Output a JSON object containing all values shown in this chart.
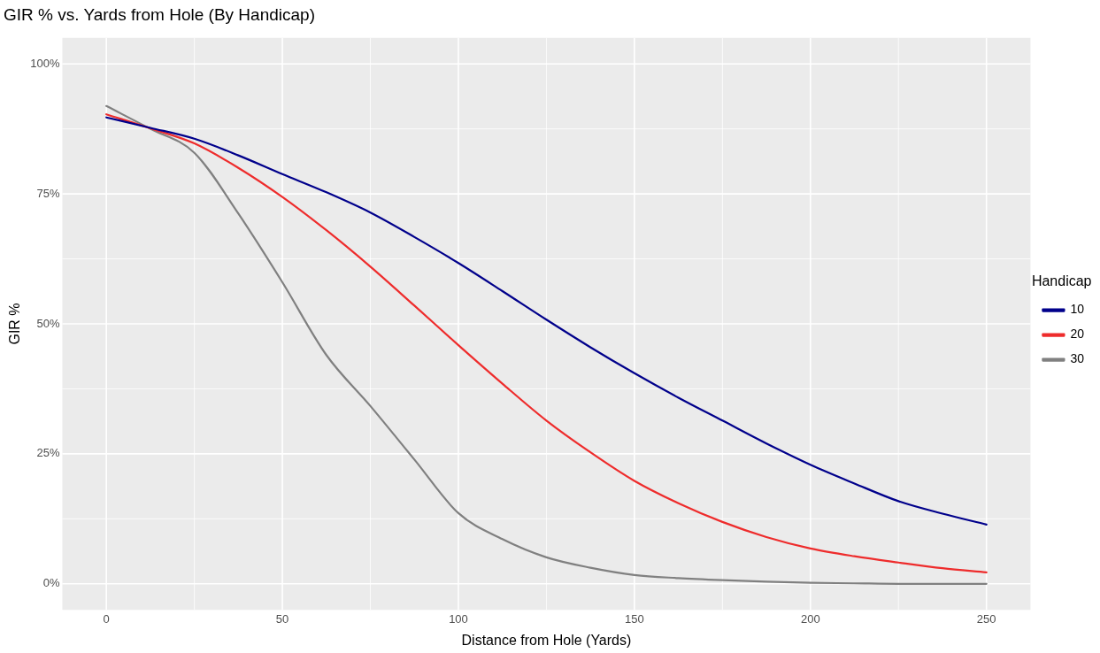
{
  "chart_data": {
    "type": "line",
    "title": "GIR % vs. Yards from Hole (By Handicap)",
    "xlabel": "Distance from Hole (Yards)",
    "ylabel": "GIR %",
    "legend_title": "Handicap",
    "x": [
      0,
      12.5,
      25,
      37.5,
      50,
      62.5,
      75,
      87.5,
      100,
      112.5,
      125,
      137.5,
      150,
      162.5,
      175,
      187.5,
      200,
      212.5,
      225,
      237.5,
      250
    ],
    "series": [
      {
        "name": "10",
        "color": "#00008b",
        "values": [
          89.7,
          87.7,
          85.6,
          82.4,
          78.8,
          75.3,
          71.4,
          66.7,
          61.7,
          56.3,
          50.8,
          45.5,
          40.5,
          35.8,
          31.4,
          27,
          22.9,
          19.3,
          15.9,
          13.5,
          11.4
        ]
      },
      {
        "name": "20",
        "color": "#ee2c2c",
        "values": [
          90.3,
          87.6,
          84.7,
          80,
          74.4,
          68,
          61,
          53.5,
          45.9,
          38.5,
          31.4,
          25.3,
          19.8,
          15.5,
          11.9,
          9,
          6.8,
          5.3,
          4.1,
          3,
          2.2
        ]
      },
      {
        "name": "30",
        "color": "#808080",
        "values": [
          91.9,
          87.5,
          82.9,
          71.2,
          58,
          44,
          34.2,
          23.9,
          13.6,
          8.6,
          5.1,
          3.1,
          1.7,
          1.1,
          0.7,
          0.4,
          0.2,
          0.1,
          0,
          0,
          0
        ]
      }
    ],
    "xlim": [
      -12.5,
      262.5
    ],
    "xticks": [
      0,
      50,
      100,
      150,
      200,
      250
    ],
    "ylim": [
      -5,
      105
    ],
    "yticks": [
      {
        "value": 0,
        "label": "0%"
      },
      {
        "value": 25,
        "label": "25%"
      },
      {
        "value": 50,
        "label": "50%"
      },
      {
        "value": 75,
        "label": "75%"
      },
      {
        "value": 100,
        "label": "100%"
      }
    ],
    "grid": true,
    "legend": "right",
    "marker": "none",
    "line_style": "solid"
  }
}
